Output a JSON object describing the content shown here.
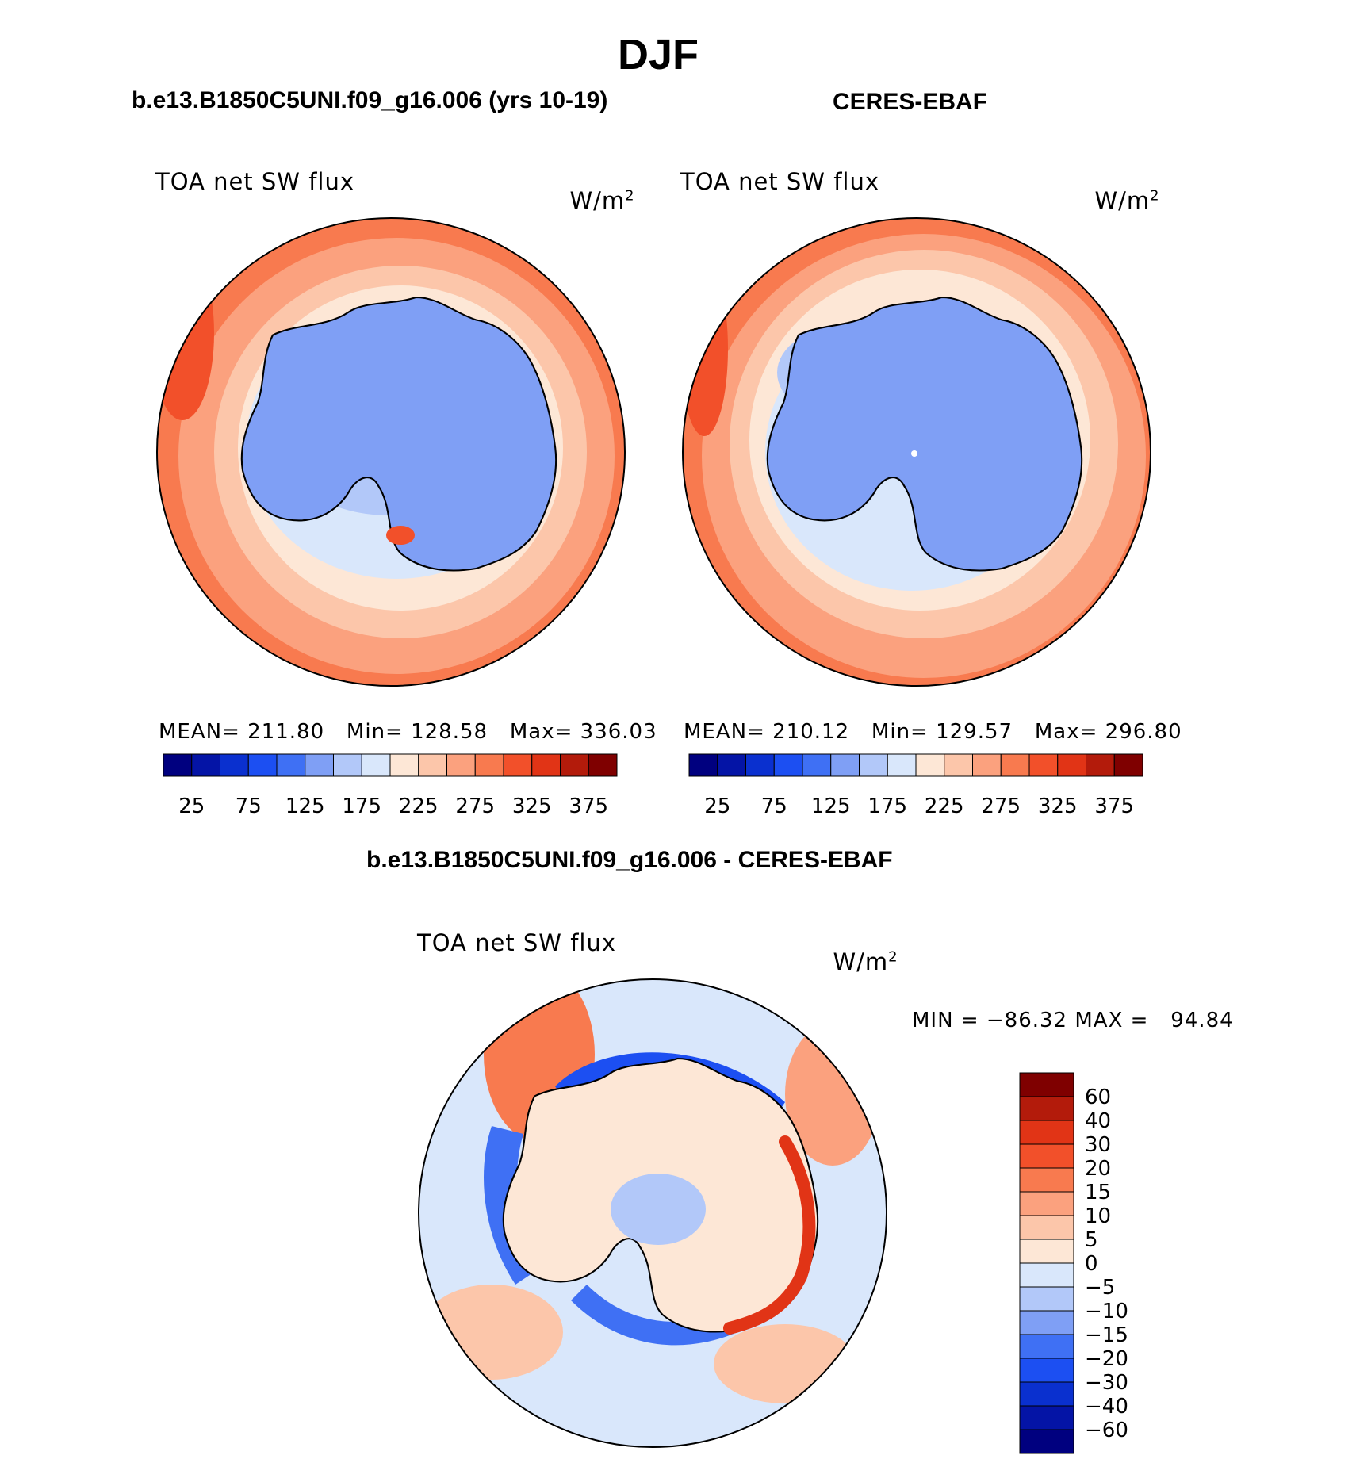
{
  "page": {
    "title": "DJF",
    "panel1_title": "b.e13.B1850C5UNI.f09_g16.006 (yrs 10-19)",
    "panel2_title": "CERES-EBAF",
    "diff_title": "b.e13.B1850C5UNI.f09_g16.006 - CERES-EBAF"
  },
  "panels": [
    {
      "variable": "TOA net SW flux",
      "units": "W/m",
      "units_sup": "2",
      "stats": "MEAN= 211.80   Min= 128.58   Max= 336.03",
      "colorbar_ticks": [
        "25",
        "75",
        "125",
        "175",
        "225",
        "275",
        "325",
        "375"
      ]
    },
    {
      "variable": "TOA net SW flux",
      "units": "W/m",
      "units_sup": "2",
      "stats": "MEAN= 210.12   Min= 129.57   Max= 296.80",
      "colorbar_ticks": [
        "25",
        "75",
        "125",
        "175",
        "225",
        "275",
        "325",
        "375"
      ]
    }
  ],
  "diff_panel": {
    "variable": "TOA net SW flux",
    "units": "W/m",
    "units_sup": "2",
    "minmax": "MIN = −86.32 MAX =   94.84",
    "colorbar_labels": [
      "60",
      "40",
      "30",
      "20",
      "15",
      "10",
      "5",
      "0",
      "−5",
      "−10",
      "−15",
      "−20",
      "−30",
      "−40",
      "−60"
    ]
  },
  "colors": {
    "flux_scale": [
      "#00007f",
      "#0414a6",
      "#0a30cf",
      "#1c4ff2",
      "#3f70f4",
      "#7f9ff5",
      "#b2c8f9",
      "#d9e7fb",
      "#fde7d6",
      "#fcc6aa",
      "#fba17e",
      "#f87a4f",
      "#f2502a",
      "#e13416",
      "#b31b0b",
      "#7f0000"
    ],
    "diff_scale": [
      "#7f0000",
      "#b31b0b",
      "#e13416",
      "#f2502a",
      "#f87a4f",
      "#fba17e",
      "#fcc6aa",
      "#fde7d6",
      "#d9e7fb",
      "#b2c8f9",
      "#7f9ff5",
      "#3f70f4",
      "#1c4ff2",
      "#0a30cf",
      "#0414a6",
      "#00007f"
    ],
    "coastline": "#000000"
  }
}
